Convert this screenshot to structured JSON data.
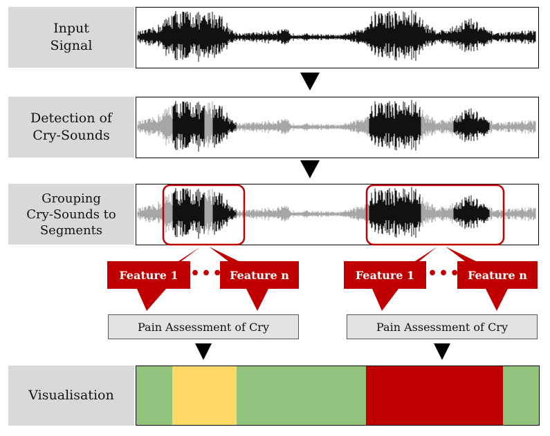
{
  "rows": {
    "input": {
      "line1": "Input",
      "line2": "Signal"
    },
    "detection": {
      "line1": "Detection of",
      "line2": "Cry-Sounds"
    },
    "grouping": {
      "line1": "Grouping",
      "line2": "Cry-Sounds to",
      "line3": "Segments"
    },
    "visualisation": {
      "line1": "Visualisation"
    }
  },
  "features": {
    "left": {
      "first": "Feature 1",
      "dots": "•••",
      "last": "Feature n"
    },
    "right": {
      "first": "Feature 1",
      "dots": "•••",
      "last": "Feature n"
    }
  },
  "pain_assessment": {
    "left": "Pain Assessment of Cry",
    "right": "Pain Assessment of Cry"
  },
  "visualisation_segments": [
    {
      "fraction": 0.09,
      "color": "#93c47d"
    },
    {
      "fraction": 0.16,
      "color": "#ffd966"
    },
    {
      "fraction": 0.32,
      "color": "#93c47d"
    },
    {
      "fraction": 0.34,
      "color": "#c00000"
    },
    {
      "fraction": 0.09,
      "color": "#93c47d"
    }
  ],
  "colors": {
    "label_bg": "#d9d9d9",
    "wave_dark": "#111111",
    "wave_light": "#a6a6a6",
    "accent_red": "#c00000",
    "green": "#93c47d",
    "yellow": "#ffd966"
  }
}
